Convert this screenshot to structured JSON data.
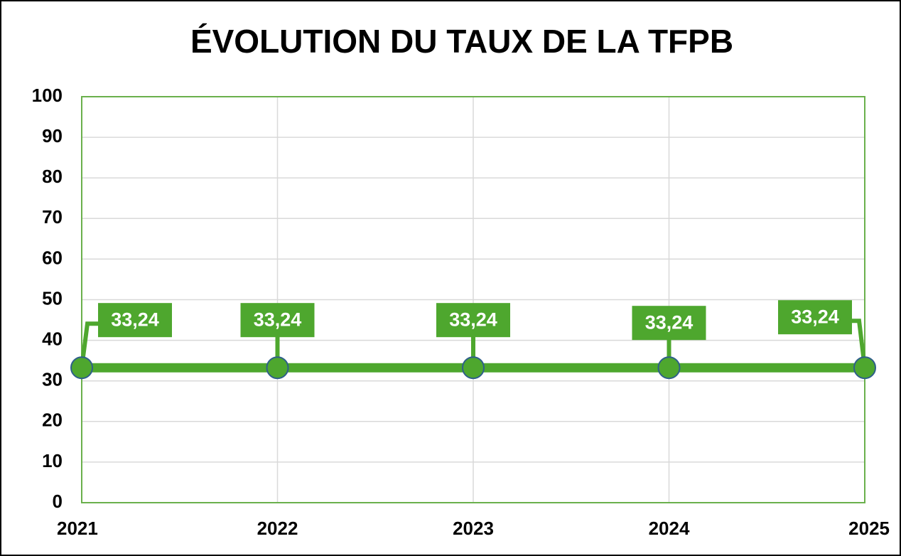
{
  "chart_data": {
    "type": "line",
    "title": "ÉVOLUTION DU TAUX DE LA TFPB",
    "categories": [
      "2021",
      "2022",
      "2023",
      "2024",
      "2025"
    ],
    "series": [
      {
        "color": "#4ea72e",
        "values": [
          33.24,
          33.24,
          33.24,
          33.24,
          33.24
        ],
        "value_labels": [
          "33,24",
          "33,24",
          "33,24",
          "33,24",
          "33,24"
        ]
      }
    ],
    "ylim": [
      0,
      100
    ],
    "yticks": [
      0,
      10,
      20,
      30,
      40,
      50,
      60,
      70,
      80,
      90,
      100
    ],
    "grid": true
  }
}
